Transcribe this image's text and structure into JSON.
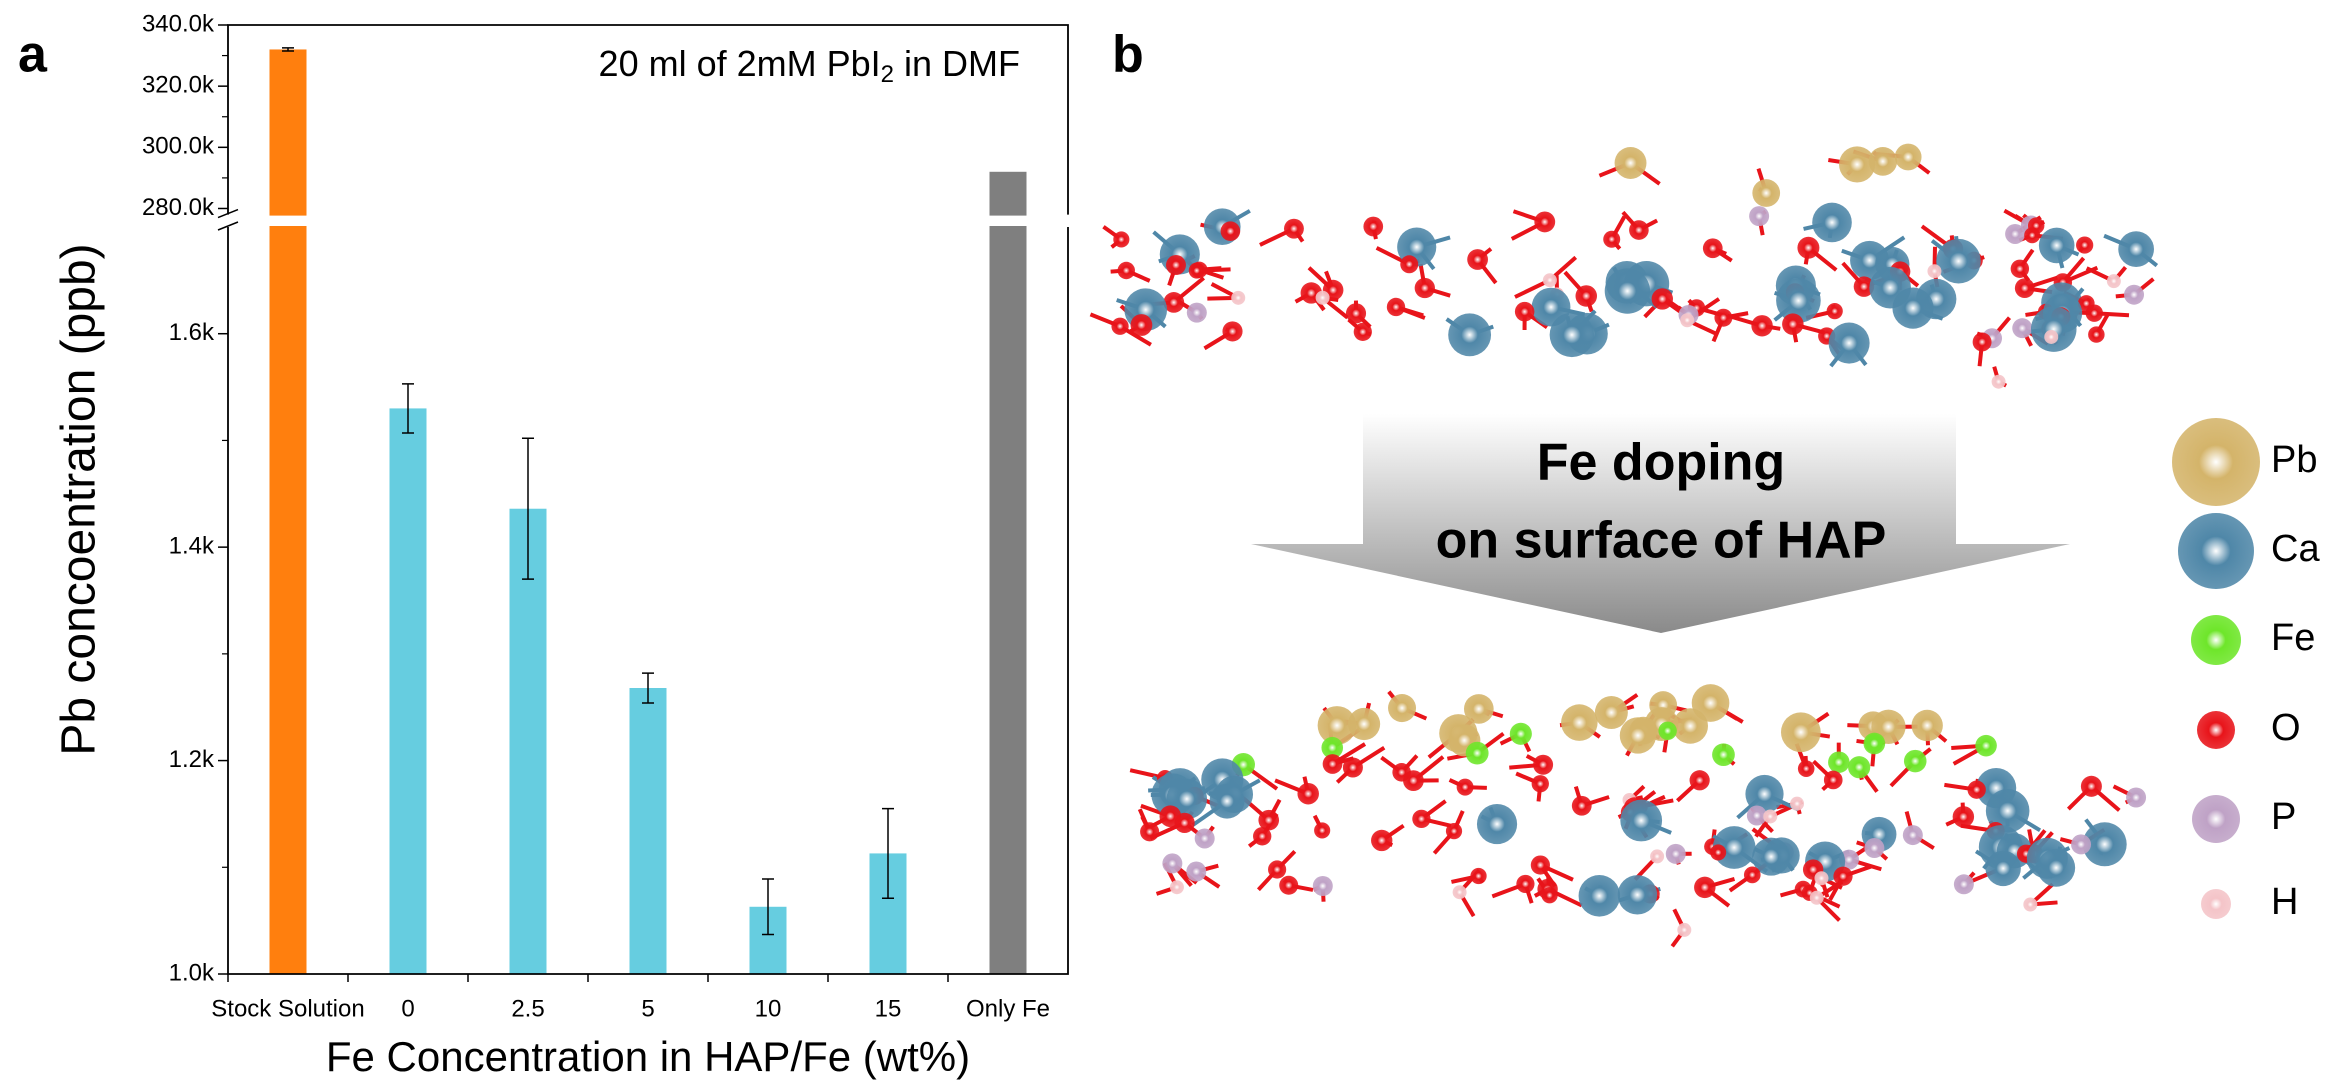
{
  "panel_labels": [
    "a",
    "b"
  ],
  "chart_data": {
    "type": "bar",
    "annotation": "20 ml of 2mM PbI",
    "annotation_subscript": "2",
    "annotation_suffix": " in DMF",
    "xlabel": "Fe Concentration in HAP/Fe (wt%)",
    "ylabel": "Pb concoentration (ppb)",
    "categories": [
      "Stock Solution",
      "0",
      "2.5",
      "5",
      "10",
      "15",
      "Only Fe"
    ],
    "values": [
      332000,
      1530,
      1436,
      1268,
      1063,
      1113,
      292000
    ],
    "errors": [
      500,
      23,
      66,
      14,
      26,
      42,
      null
    ],
    "colors": [
      "#ff7f0e",
      "#66cde0",
      "#66cde0",
      "#66cde0",
      "#66cde0",
      "#66cde0",
      "#7f7f7f"
    ],
    "ylim": [
      1000,
      1700
    ],
    "yticks": [
      {
        "value": 1000,
        "label": "1.0k"
      },
      {
        "value": 1200,
        "label": "1.2k"
      },
      {
        "value": 1400,
        "label": "1.4k"
      },
      {
        "value": 1600,
        "label": "1.6k"
      }
    ],
    "ylim_upper": [
      278000,
      340000
    ],
    "yticks_upper": [
      {
        "value": 280000,
        "label": "280.0k"
      },
      {
        "value": 300000,
        "label": "300.0k"
      },
      {
        "value": 320000,
        "label": "320.0k"
      },
      {
        "value": 340000,
        "label": "340.0k"
      }
    ],
    "axis_break": true
  },
  "diagram": {
    "arrow_text": [
      "Fe doping",
      "on surface of HAP"
    ],
    "legend": [
      {
        "label": "Pb",
        "color": "#d4b46a"
      },
      {
        "label": "Ca",
        "color": "#4f87a8"
      },
      {
        "label": "Fe",
        "color": "#6ee62a"
      },
      {
        "label": "O",
        "color": "#e8141a"
      },
      {
        "label": "P",
        "color": "#bfa2c6"
      },
      {
        "label": "H",
        "color": "#f4c4c8"
      }
    ]
  }
}
